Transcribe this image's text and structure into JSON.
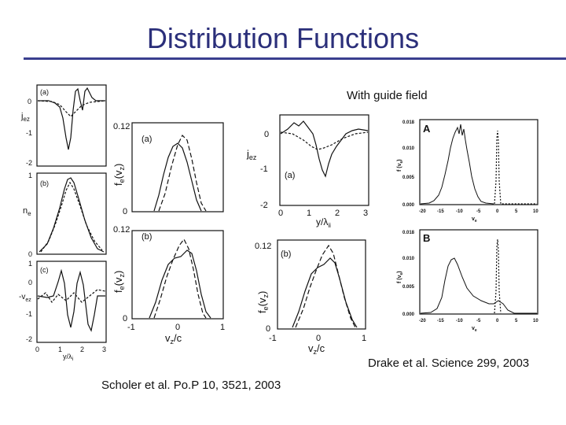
{
  "slide": {
    "title": "Distribution Functions",
    "guide_caption": "With guide field",
    "drake_caption": "Drake et al. Science 299, 2003",
    "scholer_caption": "Scholer et al. Po.P 10, 3521, 2003"
  },
  "col1": {
    "panel_a": {
      "tag": "(a)",
      "ylabel": "j",
      "ysub": "ez",
      "ticks": [
        "0",
        "-1",
        "-2"
      ]
    },
    "panel_b": {
      "tag": "(b)",
      "ylabel": "n",
      "ysub": "e",
      "ticks": [
        "1",
        "0"
      ]
    },
    "panel_c": {
      "tag": "(c)",
      "ylabel": "-v",
      "ysub": "ez",
      "ticks": [
        "1",
        "0",
        "-1",
        "-2"
      ]
    },
    "xticks": [
      "0",
      "1",
      "2",
      "3"
    ],
    "xlabel": "y/λ",
    "xsub": "i"
  },
  "col2": {
    "panel_a": {
      "tag": "(a)",
      "ylabel": "f",
      "ysub": "e",
      "arg": "(v",
      "argsub": "z",
      "close": ")",
      "ticks": [
        "0.12",
        "0"
      ]
    },
    "panel_b": {
      "tag": "(b)",
      "ylabel": "f",
      "ysub": "e",
      "arg": "(v",
      "argsub": "z",
      "close": ")",
      "ticks": [
        "0.12",
        "0"
      ]
    },
    "xticks": [
      "-1",
      "0",
      "1"
    ],
    "xlabel": "v",
    "xsub": "z",
    "xunit": "/c"
  },
  "col3": {
    "panel_a": {
      "tag": "(a)",
      "ylabel": "j",
      "ysub": "ez",
      "ticks": [
        "0",
        "-1",
        "-2"
      ],
      "xticks": [
        "0",
        "1",
        "2",
        "3"
      ],
      "xlabel": "y/λ",
      "xsub": "ii"
    },
    "panel_b": {
      "tag": "(b)",
      "ylabel": "f",
      "ysub": "e",
      "arg": "(v",
      "argsub": "z",
      "close": ")",
      "ticks": [
        "0.12",
        "0"
      ],
      "xticks": [
        "-1",
        "0",
        "1"
      ],
      "xlabel": "v",
      "xsub": "z",
      "xunit": "/c"
    }
  },
  "drake": {
    "panel_A": {
      "tag": "A",
      "ylabel": "f (v",
      "ysub": "e",
      "yclose": ")",
      "yticks": [
        "0.018",
        "0.010",
        "0.005",
        "0.000"
      ],
      "xticks": [
        "-20",
        "-15",
        "-10",
        "-5",
        "0",
        "5",
        "10"
      ],
      "xlabel": "v",
      "xsub": "e"
    },
    "panel_B": {
      "tag": "B",
      "ylabel": "f (v",
      "ysub": "e",
      "yclose": ")",
      "yticks": [
        "0.018",
        "0.010",
        "0.005",
        "0.000"
      ],
      "xticks": [
        "-20",
        "-15",
        "-10",
        "-5",
        "0",
        "5",
        "10"
      ],
      "xlabel": "v",
      "xsub": "e"
    }
  }
}
